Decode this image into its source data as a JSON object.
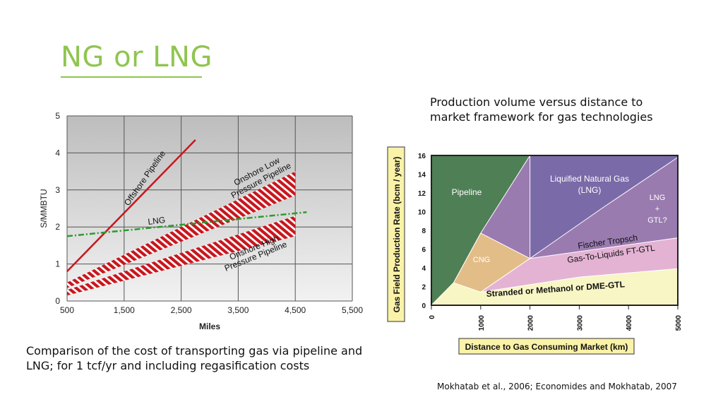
{
  "slide": {
    "title": "NG or LNG",
    "caption_left": "Comparison of the cost of transporting gas via pipeline and LNG; for 1 tcf/yr and including regasification costs",
    "caption_right": "Production volume versus distance to market framework for gas technologies",
    "citation": "Mokhatab et al., 2006; Economides and Mokhatab, 2007"
  },
  "colors": {
    "title": "#8fc550",
    "offshore": "#c8161d",
    "lng": "#2e9a2e",
    "pipeline_region": "#4f7f55",
    "lng_region": "#7a6aa8",
    "lng_gtl_region": "#9a7bb0",
    "cng_region": "#e3bd88",
    "ftgtl_region": "#e4b3d4",
    "stranded_region": "#f7f6c4",
    "label_box": "#f9f2a8"
  },
  "chart_data": [
    {
      "type": "line",
      "xlabel": "Miles",
      "ylabel": "S/MMBTU",
      "xlim": [
        500,
        5500
      ],
      "ylim": [
        0,
        5
      ],
      "x_ticks": [
        "500",
        "1,500",
        "2,500",
        "3,500",
        "4,500",
        "5,500"
      ],
      "y_ticks": [
        "0",
        "1",
        "2",
        "3",
        "4",
        "5"
      ],
      "grid": true,
      "series": [
        {
          "name": "Offshore Pipeline",
          "style": "solid",
          "x": [
            500,
            2750
          ],
          "y": [
            0.8,
            4.35
          ]
        },
        {
          "name": "LNG",
          "style": "dash-dot",
          "x": [
            500,
            4700
          ],
          "y": [
            1.75,
            2.4
          ]
        },
        {
          "name": "Onshore Low Pressure Pipeline",
          "style": "hatched-band",
          "x": [
            500,
            4500
          ],
          "y_low": [
            0.35,
            2.85
          ],
          "y_high": [
            0.5,
            3.5
          ]
        },
        {
          "name": "Onshore High Pressure Pipeline",
          "style": "hatched-band",
          "x": [
            500,
            4500
          ],
          "y_low": [
            0.15,
            1.75
          ],
          "y_high": [
            0.3,
            2.3
          ]
        }
      ],
      "annotations": {
        "offshore": "Offshore Pipeline",
        "lng": "LNG",
        "onshore_low_1": "Onshore Low",
        "onshore_low_2": "Pressure Pipeline",
        "onshore_high_1": "Onshore High",
        "onshore_high_2": "Pressure Pipeline"
      }
    },
    {
      "type": "area",
      "xlabel": "Distance to Gas Consuming Market (km)",
      "ylabel": "Gas Field Production Rate (bcm / year)",
      "xlim": [
        0,
        5000
      ],
      "ylim": [
        0,
        16
      ],
      "x_ticks": [
        "0",
        "1000",
        "2000",
        "3000",
        "4000",
        "5000"
      ],
      "y_ticks": [
        "0",
        "2",
        "4",
        "6",
        "8",
        "10",
        "12",
        "14",
        "16"
      ],
      "regions": [
        {
          "name": "Pipeline",
          "label": "Pipeline",
          "polygon": [
            [
              0,
              0
            ],
            [
              0,
              16
            ],
            [
              2000,
              16
            ],
            [
              1000,
              7.7
            ],
            [
              450,
              2.4
            ]
          ]
        },
        {
          "name": "Liquified Natural Gas (LNG)",
          "label_1": "Liquified Natural Gas",
          "label_2": "(LNG)",
          "polygon": [
            [
              2000,
              16
            ],
            [
              5000,
              16
            ],
            [
              5000,
              15.8
            ],
            [
              3500,
              10.5
            ],
            [
              2000,
              5
            ]
          ]
        },
        {
          "name": "LNG + GTL?",
          "label_1": "LNG",
          "label_2": "+",
          "label_3": "GTL?"
        },
        {
          "name": "CNG",
          "label": "CNG",
          "polygon": [
            [
              450,
              2.4
            ],
            [
              1000,
              7.7
            ],
            [
              2000,
              5
            ],
            [
              1000,
              1.4
            ]
          ]
        },
        {
          "name": "Fischer Tropsch Gas-To-Liquids FT-GTL",
          "label_1": "Fischer Tropsch",
          "label_2": "Gas-To-Liquids FT-GTL",
          "polygon": [
            [
              1000,
              1.4
            ],
            [
              2000,
              5
            ],
            [
              5000,
              7.2
            ],
            [
              5000,
              3.9
            ],
            [
              3000,
              3
            ]
          ]
        },
        {
          "name": "Stranded or Methanol or DME-GTL",
          "label": "Stranded or Methanol or DME-GTL",
          "polygon": [
            [
              0,
              0
            ],
            [
              450,
              2.4
            ],
            [
              1000,
              1.4
            ],
            [
              3000,
              3
            ],
            [
              5000,
              3.9
            ],
            [
              5000,
              0
            ]
          ]
        }
      ]
    }
  ]
}
